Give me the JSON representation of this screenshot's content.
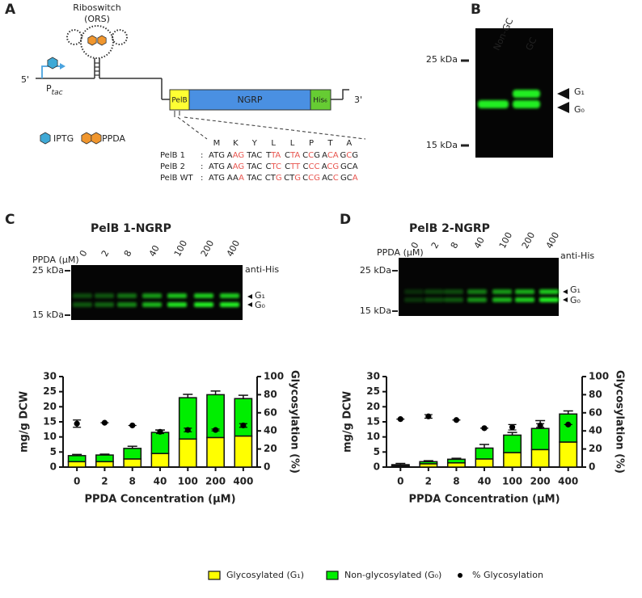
{
  "panel_labels": [
    "A",
    "B",
    "C",
    "D"
  ],
  "diagram": {
    "riboswitch": "Riboswitch",
    "ors": "(ORS)",
    "promoter": {
      "main": "P",
      "sub": "tac"
    },
    "five_prime": "5'",
    "three_prime": "3'",
    "genes": [
      "PelB",
      "NGRP",
      "His₆"
    ],
    "inducers": [
      "IPTG",
      "PPDA"
    ],
    "amino_acids": [
      "M",
      "K",
      "Y",
      "L",
      "L",
      "P",
      "T",
      "A"
    ],
    "sequences": [
      {
        "label": "PelB 1",
        "separator": ":",
        "codons": [
          [
            {
              "t": "ATG",
              "color": "#222222"
            }
          ],
          [
            {
              "t": "A",
              "color": "#222222"
            },
            {
              "t": "AG",
              "color": "#e8544e"
            }
          ],
          [
            {
              "t": "TAC",
              "color": "#222222"
            }
          ],
          [
            {
              "t": "T",
              "color": "#222222"
            },
            {
              "t": "TA",
              "color": "#e8544e"
            }
          ],
          [
            {
              "t": "C",
              "color": "#222222"
            },
            {
              "t": "TA",
              "color": "#e8544e"
            }
          ],
          [
            {
              "t": "C",
              "color": "#222222"
            },
            {
              "t": "C",
              "color": "#e8544e"
            },
            {
              "t": "G",
              "color": "#222222"
            }
          ],
          [
            {
              "t": "A",
              "color": "#222222"
            },
            {
              "t": "CA",
              "color": "#e8544e"
            }
          ],
          [
            {
              "t": "G",
              "color": "#222222"
            },
            {
              "t": "C",
              "color": "#e8544e"
            },
            {
              "t": "G",
              "color": "#222222"
            }
          ]
        ]
      },
      {
        "label": "PelB 2",
        "separator": ":",
        "codons": [
          [
            {
              "t": "ATG",
              "color": "#222222"
            }
          ],
          [
            {
              "t": "A",
              "color": "#222222"
            },
            {
              "t": "AG",
              "color": "#e8544e"
            }
          ],
          [
            {
              "t": "TAC",
              "color": "#222222"
            }
          ],
          [
            {
              "t": "C",
              "color": "#222222"
            },
            {
              "t": "TC",
              "color": "#e8544e"
            }
          ],
          [
            {
              "t": "C",
              "color": "#222222"
            },
            {
              "t": "TT",
              "color": "#e8544e"
            }
          ],
          [
            {
              "t": "C",
              "color": "#222222"
            },
            {
              "t": "CC",
              "color": "#e8544e"
            }
          ],
          [
            {
              "t": "A",
              "color": "#222222"
            },
            {
              "t": "CG",
              "color": "#e8544e"
            }
          ],
          [
            {
              "t": "GCA",
              "color": "#222222"
            }
          ]
        ]
      },
      {
        "label": "PelB WT",
        "separator": ":",
        "codons": [
          [
            {
              "t": "ATG",
              "color": "#222222"
            }
          ],
          [
            {
              "t": "AA",
              "color": "#222222"
            },
            {
              "t": "A",
              "color": "#e8544e"
            }
          ],
          [
            {
              "t": "TAC",
              "color": "#222222"
            }
          ],
          [
            {
              "t": "CT",
              "color": "#222222"
            },
            {
              "t": "G",
              "color": "#e8544e"
            }
          ],
          [
            {
              "t": "CT",
              "color": "#222222"
            },
            {
              "t": "G",
              "color": "#e8544e"
            }
          ],
          [
            {
              "t": "C",
              "color": "#222222"
            },
            {
              "t": "CG",
              "color": "#e8544e"
            }
          ],
          [
            {
              "t": "AC",
              "color": "#222222"
            },
            {
              "t": "C",
              "color": "#e8544e"
            }
          ],
          [
            {
              "t": "GC",
              "color": "#222222"
            },
            {
              "t": "A",
              "color": "#e8544e"
            }
          ]
        ]
      }
    ]
  },
  "gel_b": {
    "lanes": [
      "Non-GC",
      "GC"
    ],
    "markers": [
      "25 kDa",
      "15 kDa"
    ],
    "bands": [
      "G₁",
      "G₀"
    ]
  },
  "gel_c": {
    "title": "PelB 1-NGRP",
    "lane_title": "PPDA (µM)",
    "lanes": [
      "0",
      "2",
      "8",
      "40",
      "100",
      "200",
      "400"
    ],
    "antibody": "anti-His",
    "markers": [
      "25 kDa",
      "15 kDa"
    ],
    "bands": [
      "G₁",
      "G₀"
    ]
  },
  "gel_d": {
    "title": "PelB 2-NGRP",
    "lane_title": "PPDA (µM)",
    "lanes": [
      "0",
      "2",
      "8",
      "40",
      "100",
      "200",
      "400"
    ],
    "antibody": "anti-His",
    "markers": [
      "25 kDa",
      "15 kDa"
    ],
    "bands": [
      "G₁",
      "G₀"
    ]
  },
  "chart_data": [
    {
      "type": "bar",
      "stacked": true,
      "categories": [
        "0",
        "2",
        "8",
        "40",
        "100",
        "200",
        "400"
      ],
      "x_label": "PPDA Concentration (µM)",
      "y_label": "mg/g DCW",
      "y2_label": "Glycosylation (%)",
      "ylim": [
        0,
        30
      ],
      "yticks": [
        0,
        5,
        10,
        15,
        20,
        25,
        30
      ],
      "y2lim": [
        0,
        100
      ],
      "y2ticks": [
        0,
        20,
        40,
        60,
        80,
        100
      ],
      "legend": "bottom",
      "series": [
        {
          "name": "Glycosylated (G₁)",
          "type": "bar",
          "color": "#ffff00",
          "values": [
            1.8,
            1.8,
            2.7,
            4.5,
            9.3,
            9.8,
            10.3
          ],
          "errors": [
            0.5,
            0.5,
            0.6,
            0.8,
            0.2,
            0.6,
            0.8
          ]
        },
        {
          "name": "Non-glycosylated (G₀)",
          "type": "bar",
          "color": "#00ee00",
          "values": [
            2.0,
            2.2,
            3.5,
            7.0,
            13.7,
            14.2,
            12.4
          ],
          "errors": [
            0.4,
            0.3,
            0.7,
            0.8,
            1.1,
            1.2,
            1.1
          ]
        },
        {
          "name": "% Glycosylation",
          "type": "scatter",
          "axis": "y2",
          "color": "#000000",
          "values": [
            48,
            49,
            46,
            39,
            41,
            41,
            46
          ],
          "errors": [
            4,
            0,
            0,
            2,
            2,
            1,
            2
          ]
        }
      ]
    },
    {
      "type": "bar",
      "stacked": true,
      "categories": [
        "0",
        "2",
        "8",
        "40",
        "100",
        "200",
        "400"
      ],
      "x_label": "PPDA Concentration (µM)",
      "y_label": "mg/g DCW",
      "y2_label": "Glycosylation (%)",
      "ylim": [
        0,
        30
      ],
      "yticks": [
        0,
        5,
        10,
        15,
        20,
        25,
        30
      ],
      "y2lim": [
        0,
        100
      ],
      "y2ticks": [
        0,
        20,
        40,
        60,
        80,
        100
      ],
      "series": [
        {
          "type": "bar",
          "color": "#ffff00",
          "values": [
            0.4,
            1.1,
            1.4,
            2.7,
            4.8,
            5.8,
            8.3
          ],
          "errors": [
            0.2,
            0.2,
            0.3,
            0.6,
            0.3,
            2.2,
            0.5
          ]
        },
        {
          "type": "bar",
          "color": "#00ee00",
          "values": [
            0.4,
            0.7,
            1.2,
            3.6,
            5.8,
            7.0,
            9.3
          ],
          "errors": [
            0.4,
            0.3,
            0.3,
            1.2,
            0.9,
            2.6,
            1.0
          ]
        },
        {
          "type": "scatter",
          "axis": "y2",
          "color": "#000000",
          "values": [
            53,
            56,
            52,
            43,
            44,
            46,
            47
          ],
          "errors": [
            0,
            2,
            0,
            0,
            3,
            2,
            0
          ]
        }
      ]
    }
  ]
}
